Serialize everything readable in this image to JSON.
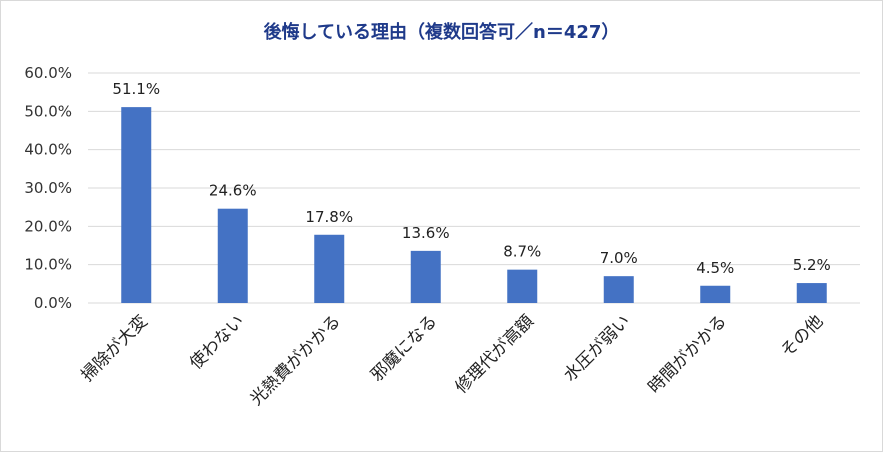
{
  "chart_data": {
    "type": "bar",
    "title": "後悔している理由（複数回答可／n＝427）",
    "categories": [
      "掃除が大変",
      "使わない",
      "光熱費がかかる",
      "邪魔になる",
      "修理代が高額",
      "水圧が弱い",
      "時間がかかる",
      "その他"
    ],
    "values": [
      51.1,
      24.6,
      17.8,
      13.6,
      8.7,
      7.0,
      4.5,
      5.2
    ],
    "data_labels": [
      "51.1%",
      "24.6%",
      "17.8%",
      "13.6%",
      "8.7%",
      "7.0%",
      "4.5%",
      "5.2%"
    ],
    "y_ticks": [
      "0.0%",
      "10.0%",
      "20.0%",
      "30.0%",
      "40.0%",
      "50.0%",
      "60.0%"
    ],
    "ylim": [
      0,
      60
    ],
    "grid": true,
    "colors": {
      "bar": "#4472c4",
      "grid": "#d9d9d9",
      "title": "#1f3a8a"
    }
  }
}
